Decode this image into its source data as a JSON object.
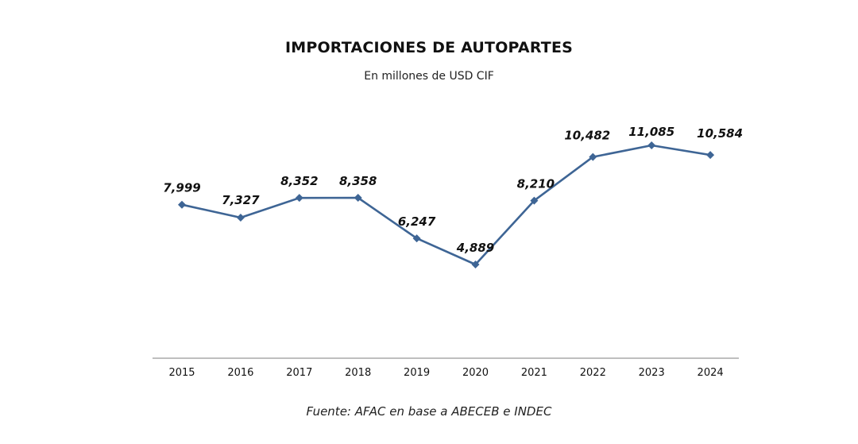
{
  "chart_data": {
    "type": "line",
    "title": "IMPORTACIONES DE AUTOPARTES",
    "subtitle": "En millones de USD CIF",
    "categories": [
      "2015",
      "2016",
      "2017",
      "2018",
      "2019",
      "2020",
      "2021",
      "2022",
      "2023",
      "2024"
    ],
    "series": [
      {
        "values": [
          7999,
          7327,
          8352,
          8358,
          6247,
          4889,
          8210,
          10482,
          11085,
          10584
        ],
        "data_labels": [
          "7,999",
          "7,327",
          "8,352",
          "8,358",
          "6,247",
          "4,889",
          "8,210",
          "10,482",
          "11,085",
          "10,584"
        ]
      }
    ],
    "xlabel": "",
    "ylabel": "",
    "grid": false,
    "y_axis_visible": false,
    "marker": "diamond",
    "line_color": "#3e6595",
    "axis_color": "#999999",
    "source": "Fuente: AFAC en base a ABECEB e INDEC"
  }
}
